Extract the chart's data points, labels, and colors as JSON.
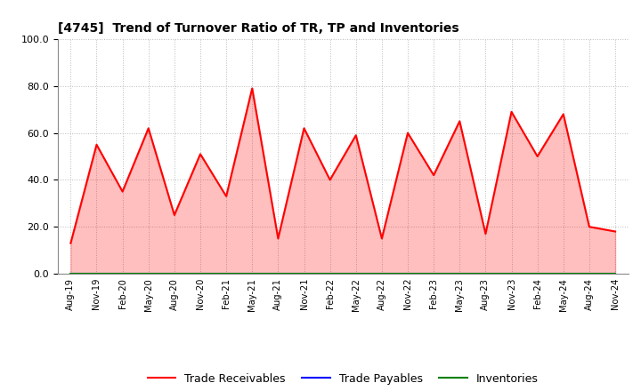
{
  "title": "[4745]  Trend of Turnover Ratio of TR, TP and Inventories",
  "ylim": [
    0.0,
    100.0
  ],
  "yticks": [
    0.0,
    20.0,
    40.0,
    60.0,
    80.0,
    100.0
  ],
  "x_labels": [
    "Aug-19",
    "Nov-19",
    "Feb-20",
    "May-20",
    "Aug-20",
    "Nov-20",
    "Feb-21",
    "May-21",
    "Aug-21",
    "Nov-21",
    "Feb-22",
    "May-22",
    "Aug-22",
    "Nov-22",
    "Feb-23",
    "May-23",
    "Aug-23",
    "Nov-23",
    "Feb-24",
    "May-24",
    "Aug-24",
    "Nov-24"
  ],
  "trade_receivables": [
    13.0,
    55.0,
    35.0,
    62.0,
    25.0,
    51.0,
    33.0,
    79.0,
    15.0,
    62.0,
    40.0,
    59.0,
    15.0,
    60.0,
    42.0,
    65.0,
    17.0,
    69.0,
    50.0,
    68.0,
    20.0,
    18.0
  ],
  "trade_payables": [
    0,
    0,
    0,
    0,
    0,
    0,
    0,
    0,
    0,
    0,
    0,
    0,
    0,
    0,
    0,
    0,
    0,
    0,
    0,
    0,
    0,
    0
  ],
  "inventories": [
    0,
    0,
    0,
    0,
    0,
    0,
    0,
    0,
    0,
    0,
    0,
    0,
    0,
    0,
    0,
    0,
    0,
    0,
    0,
    0,
    0,
    0
  ],
  "tr_color": "#FF0000",
  "tp_color": "#0000FF",
  "inv_color": "#008000",
  "background_color": "#FFFFFF",
  "grid_color": "#BBBBBB",
  "legend_labels": [
    "Trade Receivables",
    "Trade Payables",
    "Inventories"
  ]
}
